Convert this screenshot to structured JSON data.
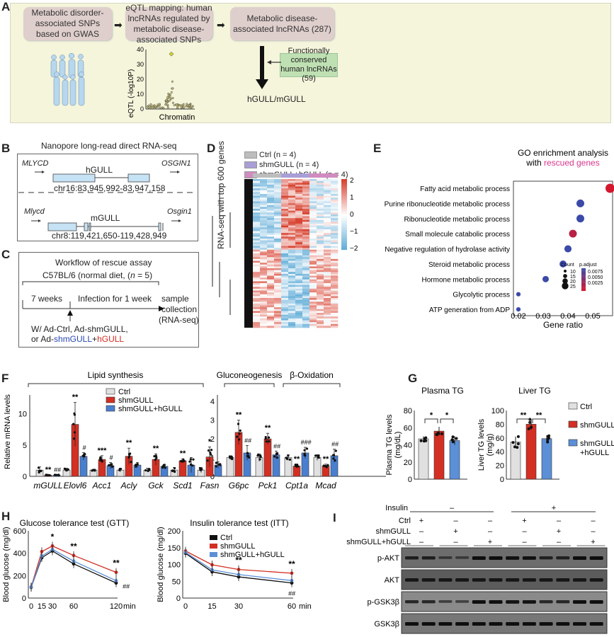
{
  "panelA": {
    "label": "A",
    "box1": "Metabolic disorder-associated SNPs based on GWAS",
    "box2": "eQTL mapping: human lncRNAs regulated by metabolic disease-associated SNPs",
    "box3": "Metabolic disease-associated lncRNAs (287)",
    "box4": "Functionally conserved human lncRNAs (59)",
    "result": "hGULL/mGULL",
    "eqtl": {
      "ylabel": "eQTL (-log10P)",
      "xlabel": "Chromatin",
      "yticks": [
        "0",
        "10",
        "20",
        "30",
        "40"
      ],
      "ymax": 40,
      "peak_value": 37
    },
    "colors": {
      "panel_bg": "#f5f5dc",
      "box_bg": "#dfcfcc",
      "conserved_bg": "#bfe0b3",
      "people": "#b7d7ee"
    }
  },
  "panelB": {
    "label": "B",
    "title": "Nanopore long-read direct RNA-seq",
    "human": {
      "left_gene": "MLYCD",
      "right_gene": "OSGIN1",
      "name": "hGULL",
      "coords": "chr16:83,945,992-83,947,158"
    },
    "mouse": {
      "left_gene": "Mlycd",
      "right_gene": "Osgin1",
      "name": "mGULL",
      "coords": "chr8:119,421,650-119,428,949"
    }
  },
  "panelC": {
    "label": "C",
    "title": "Workflow of rescue assay",
    "cohort_prefix": "C57BL/6 (normal diet, (",
    "cohort_n": "n",
    "cohort_suffix": " = 5)",
    "phase1": "7 weeks",
    "phase2": "Infection for 1 week",
    "end1": "sample",
    "end2": "collection",
    "end3": "(RNA-seq)",
    "treat1": "W/ Ad-Ctrl, Ad-shmGULL,",
    "treat2_prefix": "or Ad-",
    "treat2_blue": "shmGULL",
    "treat2_plus": "+",
    "treat2_red": "hGULL"
  },
  "panelD": {
    "label": "D",
    "ylabel": "RNA-seq with top 600 genes",
    "legend": [
      {
        "name": "Ctrl",
        "n": "(n = 4)",
        "color": "#bdbdbd"
      },
      {
        "name": "shmGULL",
        "n": "(n = 4)",
        "color": "#a99fd6"
      },
      {
        "name": "shmGULL+hGULL",
        "n": "(n = 4)",
        "color": "#d08cc0"
      }
    ],
    "scale_ticks": [
      "2",
      "1",
      "0",
      "−1",
      "−2"
    ],
    "colors": {
      "high": "#d7402e",
      "mid": "#ffffff",
      "low": "#5aa9d6"
    }
  },
  "chart_data": [
    {
      "id": "E",
      "type": "scatter",
      "title": "GO enrichment analysis",
      "subtitle_prefix": "with ",
      "subtitle_highlight": "rescued genes",
      "xlabel": "Gene ratio",
      "xlim": [
        0.018,
        0.058
      ],
      "xticks": [
        "0.02",
        "0.03",
        "0.04",
        "0.05"
      ],
      "categories": [
        "Fatty acid metabolic process",
        "Purine ribonucleotide metabolic process",
        "Ribonucleotide metabolic process",
        "Small molecule catabolic process",
        "Negative regulation of hydrolase activity",
        "Steroid metabolic process",
        "Hormone metabolic process",
        "Glycolytic process",
        "ATP generation from ADP"
      ],
      "gene_ratio": [
        0.057,
        0.045,
        0.045,
        0.042,
        0.04,
        0.038,
        0.031,
        0.02,
        0.02
      ],
      "count": [
        25,
        20,
        20,
        20,
        18,
        17,
        15,
        8,
        8
      ],
      "p_adjust": [
        0.0005,
        0.009,
        0.009,
        0.002,
        0.009,
        0.009,
        0.009,
        0.009,
        0.009
      ],
      "legend_count": {
        "title": "Count",
        "values": [
          "10",
          "15",
          "20",
          "25"
        ]
      },
      "legend_padj": {
        "title": "p.adjust",
        "values": [
          "0.0075",
          "0.0050",
          "0.0025"
        ]
      }
    },
    {
      "id": "F",
      "type": "bar",
      "ylabel": "Relative mRNA levels",
      "groups": [
        {
          "title": "Lipid synthesis",
          "categories": [
            "mGULL",
            "Elovl6",
            "Acc1",
            "Acly",
            "Gck",
            "Scd1",
            "Fasn"
          ],
          "ylim": [
            0,
            13
          ],
          "yticks": [
            "0",
            "5",
            "10"
          ]
        },
        {
          "title": "Gluconeogenesis",
          "categories": [
            "G6pc",
            "Pck1"
          ],
          "ylim": [
            0,
            4
          ],
          "yticks": [
            "0",
            "1",
            "2",
            "3",
            "4"
          ]
        },
        {
          "title": "β-Oxidation",
          "categories": [
            "Cpt1a",
            "Mcad"
          ],
          "ylim": [
            0,
            4
          ]
        }
      ],
      "categories": [
        "mGULL",
        "Elovl6",
        "Acc1",
        "Acly",
        "Gck",
        "Scd1",
        "Fasn",
        "G6pc",
        "Pck1",
        "Cpt1a",
        "Mcad"
      ],
      "series": [
        {
          "name": "Ctrl",
          "color": "#e0e0e0",
          "values": [
            1.0,
            1.0,
            1.0,
            1.0,
            1.0,
            1.0,
            1.0,
            1.0,
            1.0,
            1.0,
            1.0
          ],
          "err": [
            0.5,
            0.3,
            0.1,
            0.3,
            0.3,
            0.4,
            0.4,
            0.1,
            0.2,
            0.15,
            0.15
          ]
        },
        {
          "name": "shmGULL",
          "color": "#d32f23",
          "values": [
            0.2,
            8.3,
            2.7,
            3.2,
            2.7,
            2.5,
            3.1,
            2.35,
            2.0,
            0.55,
            0.55
          ],
          "err": [
            0.05,
            3.5,
            0.6,
            1.3,
            0.9,
            0.3,
            1.6,
            0.65,
            0.3,
            0.1,
            0.1
          ]
        },
        {
          "name": "shmGULL+hGULL",
          "color": "#4a7fd0",
          "values": [
            0.2,
            3.2,
            1.7,
            1.8,
            1.6,
            1.8,
            1.8,
            1.25,
            1.15,
            1.25,
            1.1
          ],
          "err": [
            0.05,
            0.6,
            0.5,
            0.4,
            0.3,
            1.2,
            0.5,
            0.4,
            0.2,
            0.3,
            0.35
          ]
        }
      ],
      "sig_shm": [
        "**",
        "**",
        "***",
        "**",
        "**",
        "**",
        "*",
        "**",
        "**",
        "**",
        "**"
      ],
      "sig_rescue": [
        "##",
        "#",
        "#",
        "",
        "",
        "",
        "",
        "##",
        "##",
        "###",
        "##"
      ]
    },
    {
      "id": "G-plasma",
      "type": "bar",
      "title": "Plasma TG",
      "ylabel": "Plasma TG levels (mg/dL)",
      "ylim": [
        0,
        80
      ],
      "yticks": [
        "0",
        "20",
        "40",
        "60",
        "80"
      ],
      "categories": [
        "Ctrl",
        "shmGULL",
        "shmGULL+hGULL"
      ],
      "values": [
        47,
        56,
        45
      ],
      "err": [
        3,
        5,
        5
      ],
      "sig": [
        "*",
        "*"
      ]
    },
    {
      "id": "G-liver",
      "type": "bar",
      "title": "Liver TG",
      "ylabel": "Liver TG levels (mg/g)",
      "ylim": [
        0,
        100
      ],
      "yticks": [
        "0",
        "20",
        "40",
        "60",
        "80",
        "100"
      ],
      "categories": [
        "Ctrl",
        "shmGULL",
        "shmGULL+hGULL"
      ],
      "values": [
        54,
        80,
        59
      ],
      "err": [
        8,
        8,
        5
      ],
      "sig": [
        "**",
        "**"
      ],
      "legend": [
        "Ctrl",
        "shmGULL",
        "shmGULL\n+hGULL"
      ]
    },
    {
      "id": "H-GTT",
      "type": "line",
      "title": "Glucose tolerance test (GTT)",
      "ylabel": "Blood glucose (mg/dl)",
      "xlabel": "min",
      "x": [
        0,
        15,
        30,
        60,
        120
      ],
      "xticks": [
        "0",
        "15",
        "30",
        "60",
        "120"
      ],
      "ylim": [
        0,
        600
      ],
      "yticks": [
        "0",
        "200",
        "400",
        "600"
      ],
      "series": [
        {
          "name": "Ctrl",
          "color": "#111111",
          "values": [
            95,
            360,
            420,
            305,
            135
          ]
        },
        {
          "name": "shmGULL",
          "color": "#d32f23",
          "values": [
            100,
            415,
            465,
            380,
            230
          ]
        },
        {
          "name": "shmGULL+hGULL",
          "color": "#5b8fd6",
          "values": [
            98,
            375,
            435,
            330,
            155
          ]
        }
      ],
      "sig": [
        "",
        "",
        "*",
        "**",
        "**"
      ],
      "sig_rescue": [
        "",
        "",
        "",
        "",
        "##"
      ]
    },
    {
      "id": "H-ITT",
      "type": "line",
      "title": "Insulin tolerance test (ITT)",
      "ylabel": "Blood glucose (mg/dl)",
      "xlabel": "min",
      "x": [
        0,
        15,
        30,
        60
      ],
      "xticks": [
        "0",
        "15",
        "30",
        "60"
      ],
      "ylim": [
        0,
        200
      ],
      "yticks": [
        "0",
        "50",
        "100",
        "150",
        "200"
      ],
      "series": [
        {
          "name": "Ctrl",
          "color": "#111111",
          "values": [
            133,
            78,
            63,
            45
          ]
        },
        {
          "name": "shmGULL",
          "color": "#d32f23",
          "values": [
            140,
            99,
            85,
            74
          ]
        },
        {
          "name": "shmGULL+hGULL",
          "color": "#5b8fd6",
          "values": [
            136,
            84,
            70,
            52
          ]
        }
      ],
      "sig": [
        "",
        "*",
        "**",
        "**"
      ],
      "sig_rescue": [
        "",
        "",
        "",
        "##"
      ]
    }
  ],
  "panelF": {
    "label": "F",
    "legend": [
      "Ctrl",
      "shmGULL",
      "shmGULL+hGULL"
    ]
  },
  "panelG": {
    "label": "G"
  },
  "panelH": {
    "label": "H",
    "legend": [
      "Ctrl",
      "shmGULL",
      "shmGULL+hGULL"
    ]
  },
  "panelI": {
    "label": "I",
    "insulin_label": "Insulin",
    "insulin_minus": "–",
    "insulin_plus": "+",
    "rows": [
      {
        "label": "Ctrl",
        "marks": [
          "+",
          "–",
          "–",
          "+",
          "–",
          "–"
        ]
      },
      {
        "label": "shmGULL",
        "marks": [
          "–",
          "+",
          "–",
          "–",
          "+",
          "–"
        ]
      },
      {
        "label": "shmGULL+hGULL",
        "marks": [
          "–",
          "–",
          "+",
          "–",
          "–",
          "+"
        ]
      }
    ],
    "blots": [
      {
        "label": "p-AKT",
        "intensity": [
          0.75,
          0.75,
          0.35,
          0.3,
          1.0,
          1.0,
          0.95,
          0.95,
          0.7,
          0.7,
          1.0,
          1.0
        ],
        "bg": "#6d6d6d"
      },
      {
        "label": "AKT",
        "intensity": [
          0.85,
          0.85,
          0.85,
          0.85,
          0.85,
          0.85,
          0.85,
          0.85,
          0.85,
          0.85,
          0.85,
          0.85
        ],
        "bg": "#5c5c5c"
      },
      {
        "label": "p-GSK3β",
        "intensity": [
          0.7,
          0.7,
          0.4,
          0.35,
          1.0,
          1.0,
          0.95,
          0.95,
          0.7,
          0.7,
          1.0,
          1.0
        ],
        "bg": "#8a8a8a"
      },
      {
        "label": "GSK3β",
        "intensity": [
          1,
          1,
          1,
          1,
          1,
          1,
          1,
          1,
          1,
          1,
          1,
          1
        ],
        "bg": "#777777"
      }
    ]
  }
}
